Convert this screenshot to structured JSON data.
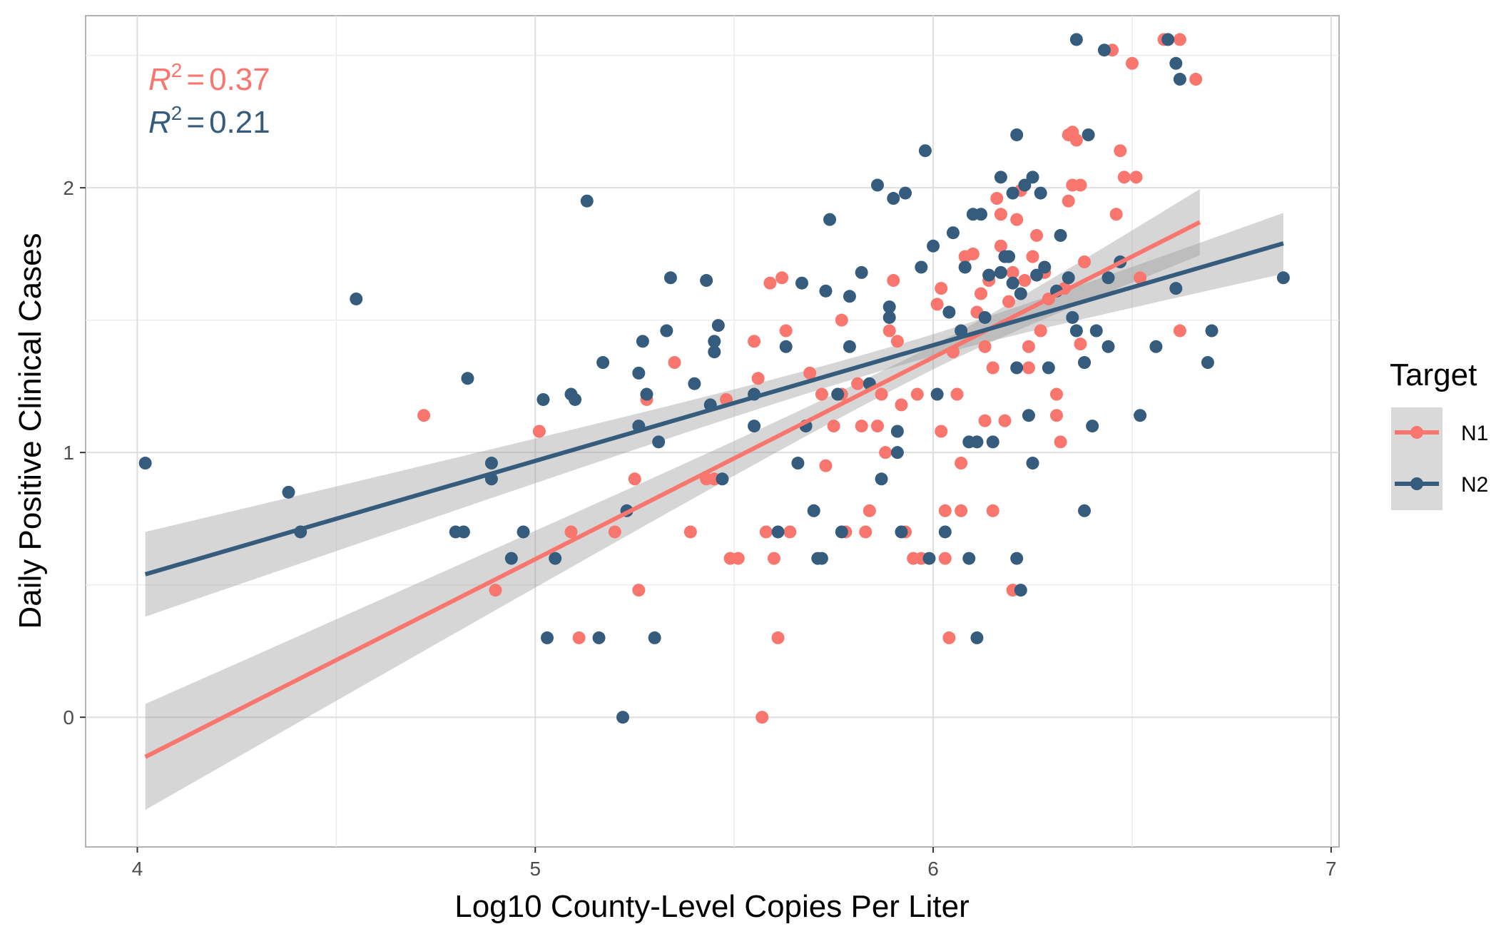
{
  "chart_data": {
    "type": "scatter",
    "title": "",
    "xlabel": "Log10 County-Level Copies Per Liter",
    "ylabel": "Daily Positive Clinical Cases",
    "xlim": [
      3.87,
      7.02
    ],
    "ylim": [
      -0.49,
      2.65
    ],
    "x_ticks": [
      4,
      5,
      6,
      7
    ],
    "y_ticks": [
      0,
      1,
      2
    ],
    "grid": true,
    "legend": {
      "title": "Target",
      "position": "right",
      "entries": [
        "N1",
        "N2"
      ]
    },
    "annotations": [
      {
        "series": "N1",
        "r2_symbol": "R",
        "r2_exp": "2",
        "r2_eq": "=",
        "r2_value": "0.37"
      },
      {
        "series": "N2",
        "r2_symbol": "R",
        "r2_exp": "2",
        "r2_eq": "=",
        "r2_value": "0.21"
      }
    ],
    "series": [
      {
        "name": "N1",
        "color": "#F8766D",
        "regression": {
          "x": [
            4.02,
            6.67
          ],
          "y": [
            -0.15,
            1.87
          ]
        },
        "band": {
          "x": [
            4.02,
            6.67
          ],
          "upper": [
            0.05,
            1.96
          ],
          "lower": [
            -0.35,
            1.71
          ]
        },
        "points": [
          [
            4.72,
            1.14
          ],
          [
            4.9,
            0.48
          ],
          [
            5.01,
            1.08
          ],
          [
            5.09,
            0.7
          ],
          [
            5.11,
            0.3
          ],
          [
            5.2,
            0.7
          ],
          [
            5.25,
            0.9
          ],
          [
            5.26,
            0.48
          ],
          [
            5.28,
            1.2
          ],
          [
            5.35,
            1.34
          ],
          [
            5.39,
            0.7
          ],
          [
            5.43,
            0.9
          ],
          [
            5.45,
            0.9
          ],
          [
            5.48,
            1.2
          ],
          [
            5.49,
            0.6
          ],
          [
            5.51,
            0.6
          ],
          [
            5.55,
            1.42
          ],
          [
            5.56,
            1.28
          ],
          [
            5.57,
            0.0
          ],
          [
            5.58,
            0.7
          ],
          [
            5.59,
            1.64
          ],
          [
            5.6,
            0.6
          ],
          [
            5.61,
            0.3
          ],
          [
            5.62,
            1.66
          ],
          [
            5.63,
            1.46
          ],
          [
            5.64,
            0.7
          ],
          [
            5.69,
            1.3
          ],
          [
            5.7,
            0.78
          ],
          [
            5.72,
            1.22
          ],
          [
            5.73,
            0.95
          ],
          [
            5.75,
            1.1
          ],
          [
            5.77,
            1.5
          ],
          [
            5.77,
            1.22
          ],
          [
            5.78,
            0.7
          ],
          [
            5.81,
            1.26
          ],
          [
            5.82,
            1.1
          ],
          [
            5.83,
            0.7
          ],
          [
            5.84,
            0.78
          ],
          [
            5.86,
            1.1
          ],
          [
            5.87,
            1.22
          ],
          [
            5.88,
            1.0
          ],
          [
            5.89,
            1.46
          ],
          [
            5.9,
            1.65
          ],
          [
            5.91,
            1.42
          ],
          [
            5.92,
            1.18
          ],
          [
            5.93,
            0.7
          ],
          [
            5.95,
            0.6
          ],
          [
            5.96,
            1.22
          ],
          [
            5.97,
            0.6
          ],
          [
            6.01,
            1.56
          ],
          [
            6.02,
            1.62
          ],
          [
            6.02,
            1.08
          ],
          [
            6.03,
            0.6
          ],
          [
            6.03,
            0.78
          ],
          [
            6.04,
            0.3
          ],
          [
            6.05,
            1.38
          ],
          [
            6.06,
            1.22
          ],
          [
            6.07,
            0.78
          ],
          [
            6.07,
            0.96
          ],
          [
            6.08,
            1.74
          ],
          [
            6.08,
            1.7
          ],
          [
            6.1,
            1.75
          ],
          [
            6.11,
            1.53
          ],
          [
            6.12,
            1.6
          ],
          [
            6.13,
            1.4
          ],
          [
            6.13,
            1.12
          ],
          [
            6.14,
            1.65
          ],
          [
            6.15,
            1.32
          ],
          [
            6.15,
            0.78
          ],
          [
            6.16,
            1.96
          ],
          [
            6.17,
            1.9
          ],
          [
            6.17,
            1.78
          ],
          [
            6.18,
            1.12
          ],
          [
            6.19,
            1.57
          ],
          [
            6.2,
            1.68
          ],
          [
            6.2,
            0.48
          ],
          [
            6.21,
            1.88
          ],
          [
            6.22,
            1.99
          ],
          [
            6.23,
            1.65
          ],
          [
            6.24,
            1.4
          ],
          [
            6.24,
            1.32
          ],
          [
            6.25,
            1.74
          ],
          [
            6.26,
            1.82
          ],
          [
            6.27,
            1.46
          ],
          [
            6.28,
            1.68
          ],
          [
            6.29,
            1.58
          ],
          [
            6.31,
            1.22
          ],
          [
            6.31,
            1.14
          ],
          [
            6.32,
            1.04
          ],
          [
            6.33,
            1.62
          ],
          [
            6.34,
            1.95
          ],
          [
            6.34,
            2.2
          ],
          [
            6.35,
            2.21
          ],
          [
            6.35,
            2.01
          ],
          [
            6.36,
            2.18
          ],
          [
            6.37,
            2.01
          ],
          [
            6.37,
            1.41
          ],
          [
            6.38,
            1.34
          ],
          [
            6.38,
            1.72
          ],
          [
            6.45,
            2.52
          ],
          [
            6.46,
            1.9
          ],
          [
            6.47,
            2.14
          ],
          [
            6.48,
            2.04
          ],
          [
            6.5,
            2.47
          ],
          [
            6.51,
            2.04
          ],
          [
            6.52,
            1.66
          ],
          [
            6.58,
            2.56
          ],
          [
            6.62,
            2.56
          ],
          [
            6.62,
            1.46
          ],
          [
            6.66,
            2.41
          ]
        ]
      },
      {
        "name": "N2",
        "color": "#355C7D",
        "regression": {
          "x": [
            4.02,
            6.88
          ],
          "y": [
            0.54,
            1.79
          ]
        },
        "band": {
          "x": [
            4.02,
            6.88
          ],
          "upper": [
            0.7,
            1.88
          ],
          "lower": [
            0.38,
            1.65
          ]
        },
        "points": [
          [
            4.02,
            0.96
          ],
          [
            4.38,
            0.85
          ],
          [
            4.41,
            0.7
          ],
          [
            4.55,
            1.58
          ],
          [
            4.8,
            0.7
          ],
          [
            4.82,
            0.7
          ],
          [
            4.83,
            1.28
          ],
          [
            4.89,
            0.9
          ],
          [
            4.89,
            0.96
          ],
          [
            4.94,
            0.6
          ],
          [
            4.97,
            0.7
          ],
          [
            5.02,
            1.2
          ],
          [
            5.03,
            0.3
          ],
          [
            5.05,
            0.6
          ],
          [
            5.09,
            1.22
          ],
          [
            5.1,
            1.2
          ],
          [
            5.13,
            1.95
          ],
          [
            5.16,
            0.3
          ],
          [
            5.17,
            1.34
          ],
          [
            5.22,
            0.0
          ],
          [
            5.23,
            0.78
          ],
          [
            5.26,
            1.3
          ],
          [
            5.26,
            1.1
          ],
          [
            5.27,
            1.42
          ],
          [
            5.28,
            1.22
          ],
          [
            5.3,
            0.3
          ],
          [
            5.31,
            1.04
          ],
          [
            5.33,
            1.46
          ],
          [
            5.34,
            1.66
          ],
          [
            5.4,
            1.26
          ],
          [
            5.43,
            1.65
          ],
          [
            5.44,
            1.18
          ],
          [
            5.45,
            1.38
          ],
          [
            5.45,
            1.42
          ],
          [
            5.46,
            1.48
          ],
          [
            5.47,
            0.9
          ],
          [
            5.55,
            1.1
          ],
          [
            5.55,
            1.22
          ],
          [
            5.61,
            0.7
          ],
          [
            5.63,
            1.4
          ],
          [
            5.66,
            0.96
          ],
          [
            5.67,
            1.64
          ],
          [
            5.68,
            1.1
          ],
          [
            5.7,
            0.78
          ],
          [
            5.71,
            0.6
          ],
          [
            5.72,
            0.6
          ],
          [
            5.73,
            1.61
          ],
          [
            5.74,
            1.88
          ],
          [
            5.76,
            1.22
          ],
          [
            5.77,
            0.7
          ],
          [
            5.79,
            1.4
          ],
          [
            5.79,
            1.59
          ],
          [
            5.82,
            1.68
          ],
          [
            5.84,
            1.26
          ],
          [
            5.86,
            2.01
          ],
          [
            5.87,
            0.9
          ],
          [
            5.89,
            1.51
          ],
          [
            5.89,
            1.55
          ],
          [
            5.9,
            1.96
          ],
          [
            5.91,
            1.08
          ],
          [
            5.92,
            0.7
          ],
          [
            5.91,
            1.0
          ],
          [
            5.93,
            1.98
          ],
          [
            5.97,
            1.7
          ],
          [
            5.98,
            2.14
          ],
          [
            5.99,
            0.6
          ],
          [
            6.0,
            1.78
          ],
          [
            6.01,
            1.22
          ],
          [
            6.03,
            0.7
          ],
          [
            6.04,
            1.53
          ],
          [
            6.05,
            1.83
          ],
          [
            6.07,
            1.46
          ],
          [
            6.08,
            1.7
          ],
          [
            6.09,
            1.04
          ],
          [
            6.09,
            0.6
          ],
          [
            6.1,
            1.9
          ],
          [
            6.11,
            1.04
          ],
          [
            6.11,
            0.3
          ],
          [
            6.12,
            1.9
          ],
          [
            6.13,
            1.51
          ],
          [
            6.14,
            1.67
          ],
          [
            6.15,
            1.04
          ],
          [
            6.17,
            2.04
          ],
          [
            6.17,
            1.68
          ],
          [
            6.18,
            1.74
          ],
          [
            6.19,
            1.74
          ],
          [
            6.2,
            1.64
          ],
          [
            6.2,
            1.98
          ],
          [
            6.21,
            2.2
          ],
          [
            6.21,
            1.32
          ],
          [
            6.21,
            0.6
          ],
          [
            6.22,
            1.6
          ],
          [
            6.22,
            0.48
          ],
          [
            6.23,
            2.01
          ],
          [
            6.24,
            1.14
          ],
          [
            6.25,
            2.04
          ],
          [
            6.25,
            0.96
          ],
          [
            6.26,
            1.67
          ],
          [
            6.27,
            1.98
          ],
          [
            6.28,
            1.7
          ],
          [
            6.29,
            1.32
          ],
          [
            6.31,
            1.61
          ],
          [
            6.32,
            1.82
          ],
          [
            6.34,
            1.66
          ],
          [
            6.35,
            1.51
          ],
          [
            6.36,
            2.56
          ],
          [
            6.36,
            1.46
          ],
          [
            6.38,
            1.34
          ],
          [
            6.38,
            0.78
          ],
          [
            6.39,
            2.2
          ],
          [
            6.4,
            1.1
          ],
          [
            6.41,
            1.46
          ],
          [
            6.43,
            2.52
          ],
          [
            6.44,
            1.4
          ],
          [
            6.44,
            1.66
          ],
          [
            6.47,
            1.72
          ],
          [
            6.52,
            1.14
          ],
          [
            6.56,
            1.4
          ],
          [
            6.59,
            2.56
          ],
          [
            6.61,
            2.47
          ],
          [
            6.61,
            1.62
          ],
          [
            6.62,
            2.41
          ],
          [
            6.69,
            1.34
          ],
          [
            6.7,
            1.46
          ],
          [
            6.88,
            1.66
          ]
        ]
      }
    ]
  }
}
